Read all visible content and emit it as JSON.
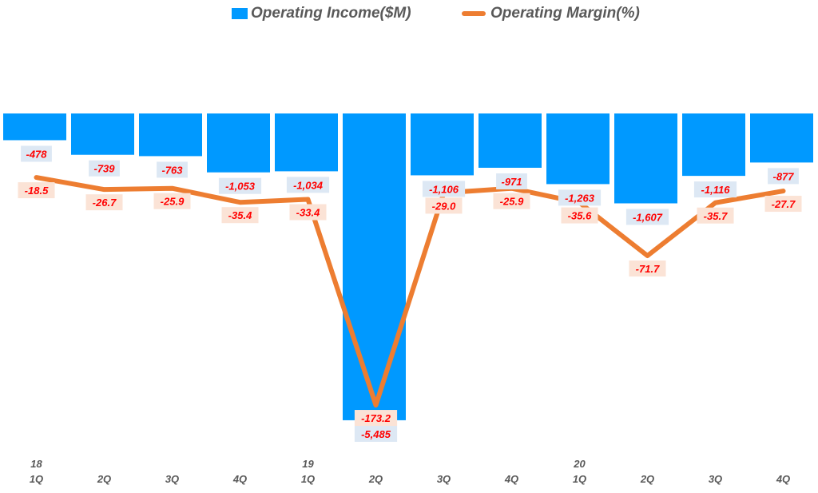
{
  "chart_data": {
    "type": "bar+line",
    "categories": [
      "1Q",
      "2Q",
      "3Q",
      "4Q",
      "1Q",
      "2Q",
      "3Q",
      "4Q",
      "1Q",
      "2Q",
      "3Q",
      "4Q"
    ],
    "year_labels": [
      "18",
      "",
      "",
      "",
      "19",
      "",
      "",
      "",
      "20",
      "",
      "",
      ""
    ],
    "series": [
      {
        "name": "Operating Income($M)",
        "type": "bar",
        "color": "#0099ff",
        "values": [
          -478,
          -739,
          -763,
          -1053,
          -1034,
          -5485,
          -1106,
          -971,
          -1263,
          -1607,
          -1116,
          -877
        ],
        "labels": [
          "-478",
          "-739",
          "-763",
          "-1,053",
          "-1,034",
          "-5,485",
          "-1,106",
          "-971",
          "-1,263",
          "-1,607",
          "-1,116",
          "-877"
        ]
      },
      {
        "name": "Operating Margin(%)",
        "type": "line",
        "color": "#ed7d31",
        "values": [
          -18.5,
          -26.7,
          -25.9,
          -35.4,
          -33.4,
          -173.2,
          -29.0,
          -25.9,
          -35.6,
          -71.7,
          -35.7,
          -27.7
        ],
        "labels": [
          "-18.5",
          "-26.7",
          "-25.9",
          "-35.4",
          "-33.4",
          "-173.2",
          "-29.0",
          "-25.9",
          "-35.6",
          "-71.7",
          "-35.7",
          "-27.7"
        ]
      }
    ],
    "legend_position": "top",
    "grid": false
  }
}
